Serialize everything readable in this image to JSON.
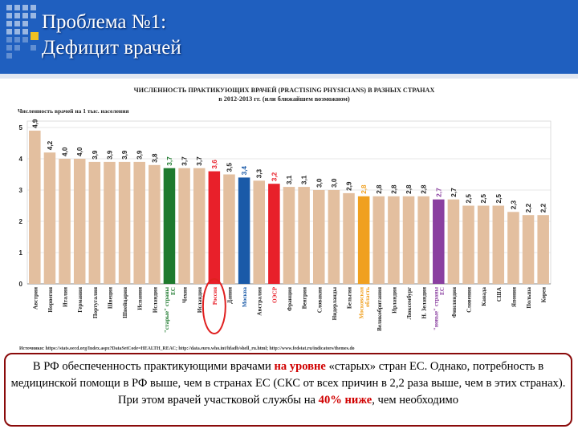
{
  "slide": {
    "title_line1": "Проблема №1:",
    "title_line2": "Дефицит врачей"
  },
  "colors": {
    "header_bg": "#1f5fbf",
    "bar_default": "#e3bf9f",
    "bar_eu_old": "#1e7a2e",
    "bar_russia": "#e8202a",
    "bar_moscow": "#1a5aa8",
    "bar_oecd": "#e8202a",
    "bar_moscow_oblast": "#f0a020",
    "bar_eu_new": "#8a3fa0",
    "highlight_circle": "#e02020"
  },
  "chart_data": {
    "type": "bar",
    "title": "ЧИСЛЕННОСТЬ ПРАКТИКУЮЩИХ ВРАЧЕЙ (PRACTISING PHYSICIANS) В РАЗНЫХ СТРАНАХ",
    "subtitle": "в 2012-2013 гг. (или ближайшем возможном)",
    "ylabel": "Численность врачей на 1 тыс. населения",
    "ylim": [
      0,
      5
    ],
    "yticks": [
      0,
      1,
      2,
      3,
      4,
      5
    ],
    "grid": true,
    "categories": [
      "Австрия",
      "Норвегия",
      "Италия",
      "Германия",
      "Португалия",
      "Швеция",
      "Швейцария",
      "Испания",
      "Исландия",
      "\"старые\" страны ЕС",
      "Чехия",
      "Исландия",
      "Россия",
      "Дания",
      "Москва",
      "Австралия",
      "ОЭСР",
      "Франция",
      "Венгрия",
      "Словакия",
      "Нидерланды",
      "Бельгия",
      "Московская область",
      "Великобритания",
      "Ирландия",
      "Люксембург",
      "Н. Зеландия",
      "\"новые\" страны ЕС",
      "Финляндия",
      "Словения",
      "Канада",
      "США",
      "Япония",
      "Польша",
      "Корея"
    ],
    "values": [
      4.9,
      4.2,
      4.0,
      4.0,
      3.9,
      3.9,
      3.9,
      3.9,
      3.8,
      3.7,
      3.7,
      3.7,
      3.6,
      3.5,
      3.4,
      3.3,
      3.2,
      3.1,
      3.1,
      3.0,
      3.0,
      2.9,
      2.8,
      2.8,
      2.8,
      2.8,
      2.8,
      2.7,
      2.7,
      2.5,
      2.5,
      2.5,
      2.3,
      2.2,
      2.2
    ],
    "value_labels": [
      "4,9",
      "4,2",
      "4,0",
      "4,0",
      "3,9",
      "3,9",
      "3,9",
      "3,9",
      "3,8",
      "3,7",
      "3,7",
      "3,7",
      "3,6",
      "3,5",
      "3,4",
      "3,3",
      "3,2",
      "3,1",
      "3,1",
      "3,0",
      "3,0",
      "2,9",
      "2,8",
      "2,8",
      "2,8",
      "2,8",
      "2,8",
      "2,7",
      "2,7",
      "2,5",
      "2,5",
      "2,5",
      "2,3",
      "2,2",
      "2,2"
    ],
    "highlight_colors": [
      "",
      "",
      "",
      "",
      "",
      "",
      "",
      "",
      "",
      "#1e7a2e",
      "",
      "",
      "#e8202a",
      "",
      "#1a5aa8",
      "",
      "#e8202a",
      "",
      "",
      "",
      "",
      "",
      "#f0a020",
      "",
      "",
      "",
      "",
      "#8a3fa0",
      "",
      "",
      "",
      "",
      "",
      "",
      ""
    ],
    "circled_category": "Россия",
    "source": "Источники: https://stats.oecd.org/Index.aspx?DataSetCode=HEALTH_REAC; http://data.euro.who.int/hfadb/shell_ru.html; http://www.fedstat.ru/indicators/themes.do"
  },
  "callout": {
    "t1": "В РФ обеспеченность практикующими врачами ",
    "t2": "на уровне",
    "t3": " «старых» стран ЕС. Однако, потребность в медицинской помощи в РФ выше, чем  в странах ЕС (СКС от всех причин в 2,2 раза выше, чем в этих странах).  При этом врачей участковой службы на ",
    "t4": "40% ниже",
    "t5": ", чем необходимо"
  }
}
